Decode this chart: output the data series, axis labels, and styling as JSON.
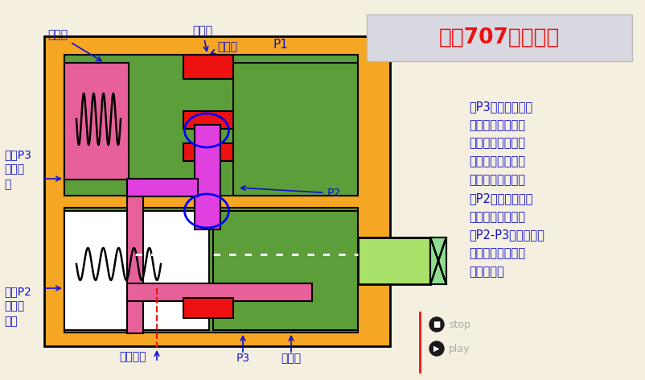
{
  "bg_color": "#F5EFE0",
  "orange": "#F5A623",
  "green": "#5C9E3A",
  "pink": "#E8609A",
  "magenta": "#E040E0",
  "red": "#EE1111",
  "white": "#FFFFFF",
  "light_green": "#A8E06A",
  "blue_text": "#1111CC",
  "title_bg": "#D8D8E0",
  "title_text": "化工707剪辑制作",
  "label_jieliu": "节流口",
  "label_jianya": "减压口",
  "label_jinyou": "进油口",
  "label_P1": "P1",
  "label_P2": "P2",
  "label_P3_top": "压力P3\n逐渐变\n大",
  "label_P2_bot": "压力P2\n也逐渐\n变大",
  "label_xielou": "泄露油口",
  "label_P3": "P3",
  "label_chuyou": "出油口",
  "desc_text": "当P3增大时，作用\n在定差减压阀阀芯\n左端的压力增大，\n阀芯右移，减压口\n增大，压降减小，\n使P2也增大从而使\n节流阀的压差也就\n是P2-P3保持不变，\n使得出口的流量基\n本保持不变"
}
